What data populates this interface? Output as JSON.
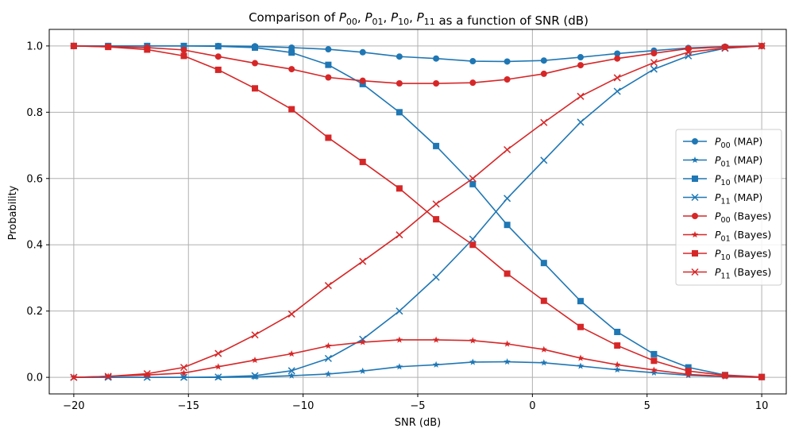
{
  "chart_data": {
    "type": "line",
    "title": "Comparison of P00, P01, P10, P11 as a function of SNR (dB)",
    "title_parts": {
      "prefix": "Comparison of ",
      "suffix": " as a function of SNR (dB)",
      "terms": [
        {
          "base": "P",
          "sub": "00",
          "sep": ", "
        },
        {
          "base": "P",
          "sub": "01",
          "sep": ", "
        },
        {
          "base": "P",
          "sub": "10",
          "sep": ", "
        },
        {
          "base": "P",
          "sub": "11",
          "sep": ""
        }
      ]
    },
    "xlabel": "SNR (dB)",
    "ylabel": "Probability",
    "xlim": [
      -21.07,
      11.07
    ],
    "ylim": [
      -0.05,
      1.05
    ],
    "x_ticks": [
      -20,
      -15,
      -10,
      -5,
      0,
      5,
      10
    ],
    "x_tick_labels": [
      "−20",
      "−15",
      "−10",
      "−5",
      "0",
      "5",
      "10"
    ],
    "y_ticks": [
      0.0,
      0.2,
      0.4,
      0.6,
      0.8,
      1.0
    ],
    "y_tick_labels": [
      "0.0",
      "0.2",
      "0.4",
      "0.6",
      "0.8",
      "1.0"
    ],
    "grid": true,
    "legend_position": "center-right",
    "colors": {
      "map": "#1f77b4",
      "bayes": "#d62728",
      "grid": "#b0b0b0"
    },
    "x": [
      -20.0,
      -18.5,
      -16.8,
      -15.2,
      -13.7,
      -12.1,
      -10.5,
      -8.9,
      -7.4,
      -5.8,
      -4.2,
      -2.6,
      -1.1,
      0.5,
      2.1,
      3.7,
      5.3,
      6.8,
      8.4,
      10.0
    ],
    "series": [
      {
        "name": "P00 (MAP)",
        "base": "P",
        "sub": "00",
        "tag": " (MAP)",
        "color": "#1f77b4",
        "marker": "circle",
        "values": [
          1.0,
          1.0,
          1.0,
          1.0,
          1.0,
          0.999,
          0.995,
          0.99,
          0.981,
          0.968,
          0.962,
          0.954,
          0.953,
          0.956,
          0.966,
          0.977,
          0.986,
          0.994,
          0.998,
          1.0
        ]
      },
      {
        "name": "P01 (MAP)",
        "base": "P",
        "sub": "01",
        "tag": " (MAP)",
        "color": "#1f77b4",
        "marker": "star",
        "values": [
          0.0,
          0.0,
          0.0,
          0.0,
          0.0,
          0.001,
          0.005,
          0.01,
          0.019,
          0.032,
          0.038,
          0.046,
          0.047,
          0.044,
          0.034,
          0.023,
          0.014,
          0.006,
          0.002,
          0.0
        ]
      },
      {
        "name": "P10 (MAP)",
        "base": "P",
        "sub": "10",
        "tag": " (MAP)",
        "color": "#1f77b4",
        "marker": "square",
        "values": [
          1.0,
          1.0,
          1.0,
          1.0,
          0.999,
          0.995,
          0.98,
          0.943,
          0.885,
          0.8,
          0.698,
          0.583,
          0.46,
          0.345,
          0.23,
          0.137,
          0.07,
          0.03,
          0.007,
          0.001
        ]
      },
      {
        "name": "P11 (MAP)",
        "base": "P",
        "sub": "11",
        "tag": " (MAP)",
        "color": "#1f77b4",
        "marker": "x",
        "values": [
          0.0,
          0.0,
          0.0,
          0.0,
          0.001,
          0.005,
          0.02,
          0.057,
          0.115,
          0.2,
          0.302,
          0.417,
          0.54,
          0.655,
          0.77,
          0.863,
          0.93,
          0.97,
          0.993,
          1.0
        ]
      },
      {
        "name": "P00 (Bayes)",
        "base": "P",
        "sub": "00",
        "tag": " (Bayes)",
        "color": "#d62728",
        "marker": "circle",
        "values": [
          1.0,
          0.998,
          0.995,
          0.988,
          0.968,
          0.948,
          0.93,
          0.905,
          0.895,
          0.887,
          0.887,
          0.889,
          0.899,
          0.916,
          0.942,
          0.962,
          0.978,
          0.992,
          0.997,
          1.0
        ]
      },
      {
        "name": "P01 (Bayes)",
        "base": "P",
        "sub": "01",
        "tag": " (Bayes)",
        "color": "#d62728",
        "marker": "star",
        "values": [
          0.0,
          0.003,
          0.007,
          0.013,
          0.032,
          0.052,
          0.071,
          0.095,
          0.106,
          0.113,
          0.113,
          0.111,
          0.101,
          0.084,
          0.058,
          0.038,
          0.022,
          0.009,
          0.003,
          0.0
        ]
      },
      {
        "name": "P10 (Bayes)",
        "base": "P",
        "sub": "10",
        "tag": " (Bayes)",
        "color": "#d62728",
        "marker": "square",
        "values": [
          1.0,
          0.997,
          0.989,
          0.97,
          0.928,
          0.872,
          0.809,
          0.723,
          0.65,
          0.57,
          0.477,
          0.4,
          0.313,
          0.231,
          0.152,
          0.096,
          0.05,
          0.019,
          0.006,
          0.001
        ]
      },
      {
        "name": "P11 (Bayes)",
        "base": "P",
        "sub": "11",
        "tag": " (Bayes)",
        "color": "#d62728",
        "marker": "x",
        "values": [
          0.0,
          0.003,
          0.011,
          0.03,
          0.072,
          0.128,
          0.191,
          0.277,
          0.35,
          0.43,
          0.523,
          0.6,
          0.687,
          0.769,
          0.848,
          0.904,
          0.95,
          0.981,
          0.994,
          1.0
        ]
      }
    ]
  }
}
